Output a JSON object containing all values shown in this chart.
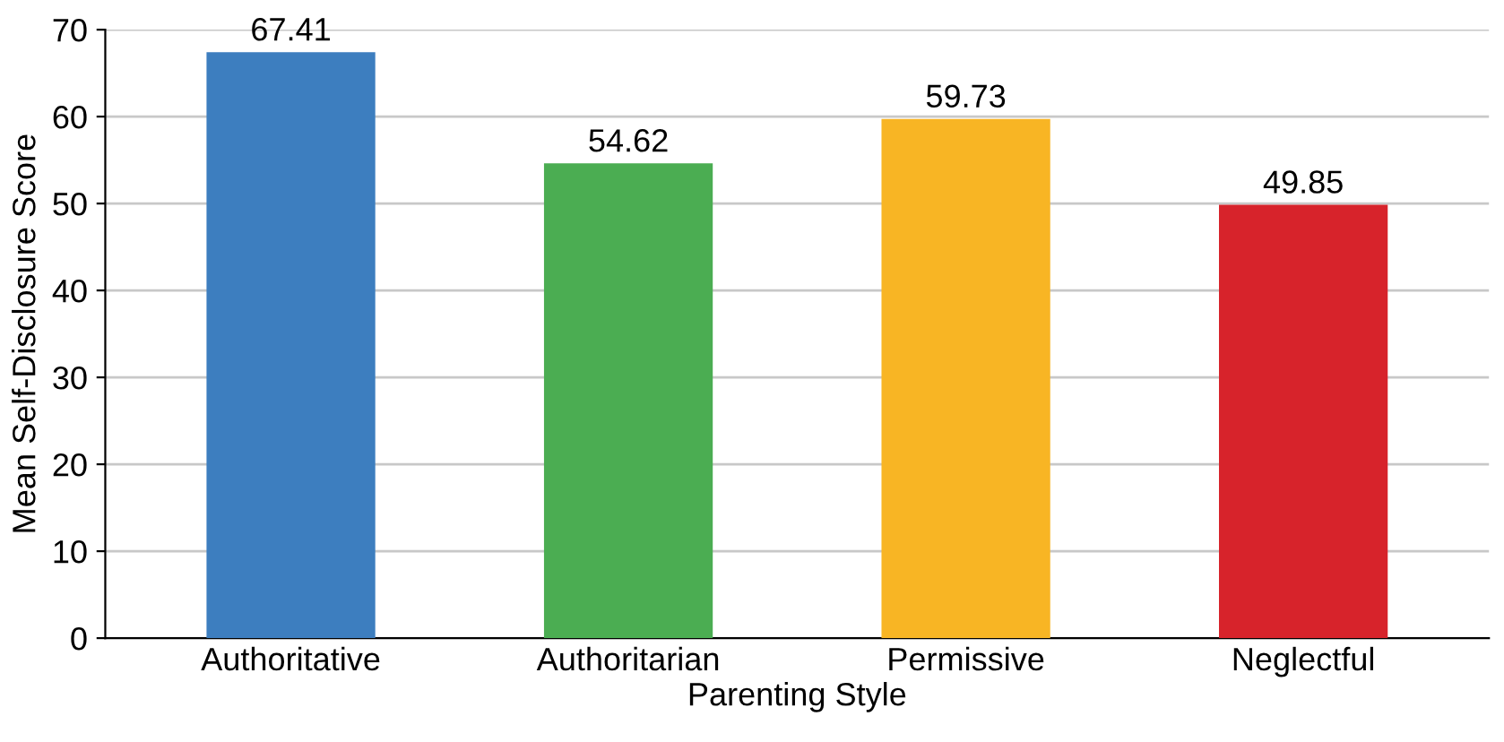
{
  "chart_data": {
    "type": "bar",
    "xlabel": "Parenting Style",
    "ylabel": "Mean Self-Disclosure Score",
    "categories": [
      "Authoritative",
      "Authoritarian",
      "Permissive",
      "Neglectful"
    ],
    "values": [
      67.41,
      54.62,
      59.73,
      49.85
    ],
    "colors": [
      "#3d7ebf",
      "#4bad52",
      "#f8b524",
      "#d7232b"
    ],
    "ylim": [
      0,
      70
    ],
    "yticks": [
      0,
      10,
      20,
      30,
      40,
      50,
      60,
      70
    ],
    "grid": "y",
    "data_labels": true
  }
}
